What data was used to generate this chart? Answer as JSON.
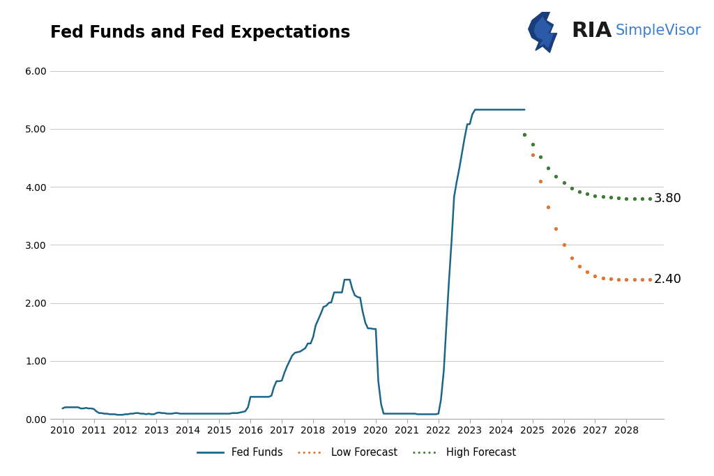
{
  "title": "Fed Funds and Fed Expectations",
  "background_color": "#ffffff",
  "title_fontsize": 17,
  "ylim": [
    0,
    6.4
  ],
  "yticks": [
    0.0,
    1.0,
    2.0,
    3.0,
    4.0,
    5.0,
    6.0
  ],
  "ytick_labels": [
    "0.00",
    "1.00",
    "2.00",
    "3.00",
    "4.00",
    "5.00",
    "6.00"
  ],
  "xlim": [
    2009.6,
    2029.2
  ],
  "xticks": [
    2010,
    2011,
    2012,
    2013,
    2014,
    2015,
    2016,
    2017,
    2018,
    2019,
    2020,
    2021,
    2022,
    2023,
    2024,
    2025,
    2026,
    2027,
    2028
  ],
  "fed_funds_color": "#1b6589",
  "low_forecast_color": "#e07535",
  "high_forecast_color": "#3e7d35",
  "annotation_fontsize": 13,
  "fed_funds_x": [
    2010.0,
    2010.08,
    2010.17,
    2010.25,
    2010.33,
    2010.42,
    2010.5,
    2010.58,
    2010.67,
    2010.75,
    2010.83,
    2010.92,
    2011.0,
    2011.08,
    2011.17,
    2011.25,
    2011.33,
    2011.42,
    2011.5,
    2011.58,
    2011.67,
    2011.75,
    2011.83,
    2011.92,
    2012.0,
    2012.08,
    2012.17,
    2012.25,
    2012.33,
    2012.42,
    2012.5,
    2012.58,
    2012.67,
    2012.75,
    2012.83,
    2012.92,
    2013.0,
    2013.08,
    2013.17,
    2013.25,
    2013.33,
    2013.42,
    2013.5,
    2013.58,
    2013.67,
    2013.75,
    2013.83,
    2013.92,
    2014.0,
    2014.08,
    2014.17,
    2014.25,
    2014.33,
    2014.42,
    2014.5,
    2014.58,
    2014.67,
    2014.75,
    2014.83,
    2014.92,
    2015.0,
    2015.08,
    2015.17,
    2015.25,
    2015.33,
    2015.42,
    2015.5,
    2015.58,
    2015.67,
    2015.75,
    2015.83,
    2015.92,
    2016.0,
    2016.08,
    2016.17,
    2016.25,
    2016.33,
    2016.42,
    2016.5,
    2016.58,
    2016.67,
    2016.75,
    2016.83,
    2016.92,
    2017.0,
    2017.08,
    2017.17,
    2017.25,
    2017.33,
    2017.42,
    2017.5,
    2017.58,
    2017.67,
    2017.75,
    2017.83,
    2017.92,
    2018.0,
    2018.08,
    2018.17,
    2018.25,
    2018.33,
    2018.42,
    2018.5,
    2018.58,
    2018.67,
    2018.75,
    2018.83,
    2018.92,
    2019.0,
    2019.08,
    2019.17,
    2019.25,
    2019.33,
    2019.42,
    2019.5,
    2019.58,
    2019.67,
    2019.75,
    2019.83,
    2019.92,
    2020.0,
    2020.04,
    2020.08,
    2020.17,
    2020.25,
    2020.33,
    2020.42,
    2020.5,
    2020.58,
    2020.67,
    2020.75,
    2020.83,
    2020.92,
    2021.0,
    2021.08,
    2021.17,
    2021.25,
    2021.33,
    2021.42,
    2021.5,
    2021.58,
    2021.67,
    2021.75,
    2021.83,
    2021.92,
    2022.0,
    2022.08,
    2022.17,
    2022.25,
    2022.33,
    2022.42,
    2022.5,
    2022.58,
    2022.67,
    2022.75,
    2022.83,
    2022.92,
    2023.0,
    2023.08,
    2023.17,
    2023.25,
    2023.33,
    2023.42,
    2023.5,
    2023.58,
    2023.67,
    2023.75,
    2023.83,
    2023.92,
    2024.0,
    2024.08,
    2024.17,
    2024.25,
    2024.33,
    2024.42,
    2024.5,
    2024.58,
    2024.67,
    2024.75
  ],
  "fed_funds_y": [
    0.18,
    0.2,
    0.2,
    0.2,
    0.2,
    0.2,
    0.2,
    0.18,
    0.18,
    0.19,
    0.18,
    0.18,
    0.17,
    0.13,
    0.1,
    0.1,
    0.09,
    0.09,
    0.08,
    0.08,
    0.08,
    0.07,
    0.07,
    0.07,
    0.08,
    0.08,
    0.09,
    0.09,
    0.1,
    0.1,
    0.09,
    0.09,
    0.08,
    0.09,
    0.08,
    0.08,
    0.1,
    0.11,
    0.1,
    0.1,
    0.09,
    0.09,
    0.09,
    0.1,
    0.1,
    0.09,
    0.09,
    0.09,
    0.09,
    0.09,
    0.09,
    0.09,
    0.09,
    0.09,
    0.09,
    0.09,
    0.09,
    0.09,
    0.09,
    0.09,
    0.09,
    0.09,
    0.09,
    0.09,
    0.09,
    0.1,
    0.1,
    0.1,
    0.11,
    0.12,
    0.13,
    0.2,
    0.38,
    0.38,
    0.38,
    0.38,
    0.38,
    0.38,
    0.38,
    0.38,
    0.4,
    0.55,
    0.65,
    0.65,
    0.66,
    0.79,
    0.91,
    1.0,
    1.09,
    1.14,
    1.15,
    1.16,
    1.19,
    1.22,
    1.3,
    1.3,
    1.41,
    1.61,
    1.72,
    1.82,
    1.93,
    1.95,
    2.0,
    2.01,
    2.18,
    2.18,
    2.18,
    2.18,
    2.4,
    2.4,
    2.4,
    2.24,
    2.13,
    2.1,
    2.09,
    1.85,
    1.65,
    1.56,
    1.56,
    1.55,
    1.55,
    1.09,
    0.65,
    0.25,
    0.09,
    0.09,
    0.09,
    0.09,
    0.09,
    0.09,
    0.09,
    0.09,
    0.09,
    0.09,
    0.09,
    0.09,
    0.09,
    0.08,
    0.08,
    0.08,
    0.08,
    0.08,
    0.08,
    0.08,
    0.08,
    0.09,
    0.33,
    0.83,
    1.58,
    2.33,
    3.08,
    3.83,
    4.08,
    4.33,
    4.58,
    4.83,
    5.08,
    5.08,
    5.25,
    5.33,
    5.33,
    5.33,
    5.33,
    5.33,
    5.33,
    5.33,
    5.33,
    5.33,
    5.33,
    5.33,
    5.33,
    5.33,
    5.33,
    5.33,
    5.33,
    5.33,
    5.33,
    5.33,
    5.33
  ],
  "low_forecast_x": [
    2024.75,
    2025.0,
    2025.25,
    2025.5,
    2025.75,
    2026.0,
    2026.25,
    2026.5,
    2026.75,
    2027.0,
    2027.25,
    2027.5,
    2027.75,
    2028.0,
    2028.25,
    2028.5,
    2028.75
  ],
  "low_forecast_y": [
    4.9,
    4.55,
    4.1,
    3.65,
    3.28,
    3.0,
    2.78,
    2.63,
    2.53,
    2.46,
    2.43,
    2.41,
    2.4,
    2.4,
    2.4,
    2.4,
    2.4
  ],
  "high_forecast_x": [
    2024.75,
    2025.0,
    2025.25,
    2025.5,
    2025.75,
    2026.0,
    2026.25,
    2026.5,
    2026.75,
    2027.0,
    2027.25,
    2027.5,
    2027.75,
    2028.0,
    2028.25,
    2028.5,
    2028.75
  ],
  "high_forecast_y": [
    4.9,
    4.73,
    4.52,
    4.33,
    4.18,
    4.07,
    3.98,
    3.92,
    3.88,
    3.85,
    3.83,
    3.82,
    3.81,
    3.8,
    3.8,
    3.8,
    3.8
  ],
  "annotation_3_80": "3.80",
  "annotation_2_40": "2.40",
  "logo_text_ria": "RIA",
  "logo_text_sv": "SimpleVisor"
}
